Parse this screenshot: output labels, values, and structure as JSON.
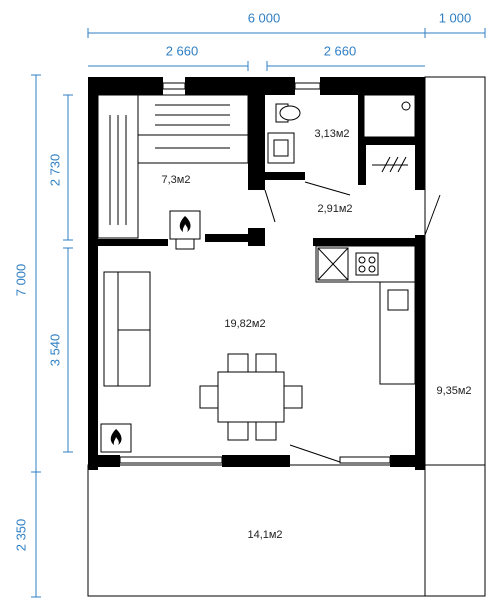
{
  "dimensions": {
    "top_total": "6 000",
    "top_extra": "1 000",
    "top_left": "2 660",
    "top_right": "2 660",
    "left_total": "7 000",
    "left_terrace": "2 350",
    "left_upper": "2 730",
    "left_lower": "3 540"
  },
  "rooms": {
    "sauna": "7,3м2",
    "bathroom": "3,13м2",
    "hall": "2,91м2",
    "living": "19,82м2",
    "side_terrace": "9,35м2",
    "front_terrace": "14,1м2"
  }
}
